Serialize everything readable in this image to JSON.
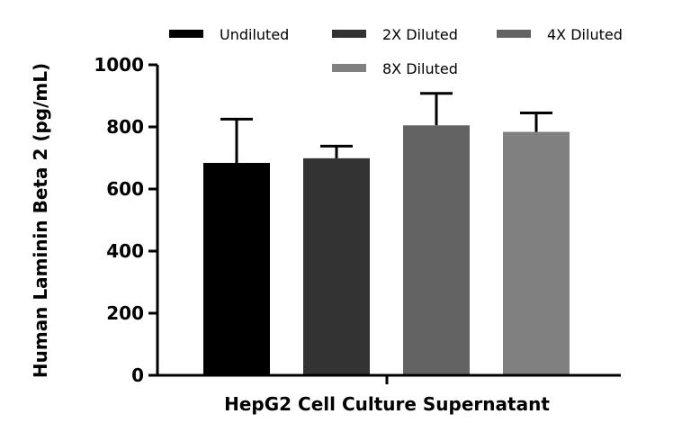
{
  "chart_data": {
    "type": "bar",
    "title": "",
    "xlabel": "HepG2 Cell Culture Supernatant",
    "ylabel": "Human Laminin Beta 2 (pg/mL)",
    "ylim": [
      0,
      1000
    ],
    "yticks": [
      "0",
      "200",
      "400",
      "600",
      "800",
      "1000"
    ],
    "grid": false,
    "legend_position": "top",
    "series": [
      {
        "name": "Undiluted",
        "value": 684,
        "error": 141,
        "color": "#000000"
      },
      {
        "name": "2X Diluted",
        "value": 699,
        "error": 39,
        "color": "#333333"
      },
      {
        "name": "4X Diluted",
        "value": 805,
        "error": 103,
        "color": "#636363"
      },
      {
        "name": "8X Diluted",
        "value": 784,
        "error": 61,
        "color": "#808080"
      }
    ]
  }
}
